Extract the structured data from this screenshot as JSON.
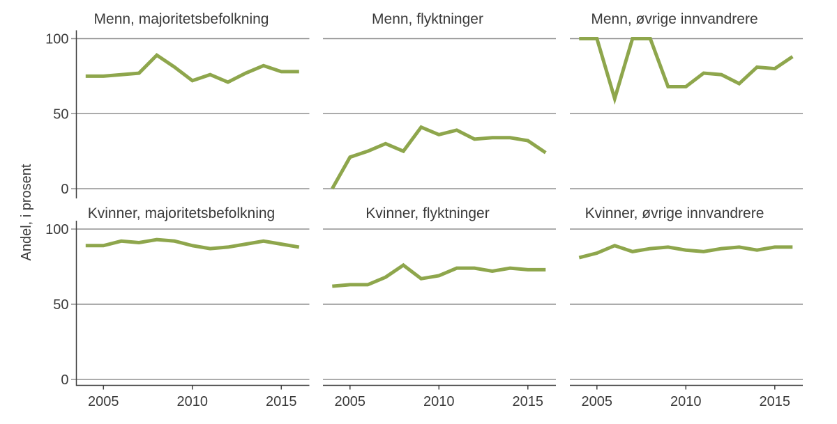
{
  "chart_data": {
    "type": "line",
    "layout": "2x3 small multiples, shared axes",
    "x": [
      2004,
      2005,
      2006,
      2007,
      2008,
      2009,
      2010,
      2011,
      2012,
      2013,
      2014,
      2015,
      2016
    ],
    "ylabel": "Andel, i prosent",
    "ylim": [
      0,
      100
    ],
    "yticks": [
      0,
      50,
      100
    ],
    "ytick_labels": [
      "0",
      "50",
      "100"
    ],
    "xticks": [
      2005,
      2010,
      2015
    ],
    "xtick_labels": [
      "2005",
      "2010",
      "2015"
    ],
    "grid": "horizontal gridlines at 0/50/100 only",
    "legend": "none",
    "panels": [
      {
        "title": "Menn, majoritetsbefolkning",
        "row": 0,
        "col": 0,
        "values": [
          75,
          75,
          76,
          77,
          89,
          81,
          72,
          76,
          71,
          77,
          82,
          78,
          78
        ]
      },
      {
        "title": "Menn, flyktninger",
        "row": 0,
        "col": 1,
        "values": [
          0,
          21,
          25,
          30,
          25,
          41,
          36,
          39,
          33,
          34,
          34,
          32,
          24
        ]
      },
      {
        "title": "Menn, øvrige innvandrere",
        "row": 0,
        "col": 2,
        "values": [
          100,
          100,
          60,
          100,
          100,
          68,
          68,
          77,
          76,
          70,
          81,
          80,
          88
        ]
      },
      {
        "title": "Kvinner, majoritetsbefolkning",
        "row": 1,
        "col": 0,
        "values": [
          89,
          89,
          92,
          91,
          93,
          92,
          89,
          87,
          88,
          90,
          92,
          90,
          88
        ]
      },
      {
        "title": "Kvinner, flyktninger",
        "row": 1,
        "col": 1,
        "values": [
          62,
          63,
          63,
          68,
          76,
          67,
          69,
          74,
          74,
          72,
          74,
          73,
          73
        ]
      },
      {
        "title": "Kvinner, øvrige innvandrere",
        "row": 1,
        "col": 2,
        "values": [
          81,
          84,
          89,
          85,
          87,
          88,
          86,
          85,
          87,
          88,
          86,
          88,
          88
        ]
      }
    ],
    "colors": {
      "line": "#8EA64C",
      "grid": "#909090",
      "axis": "#3F3F3F",
      "text": "#3A3A3A",
      "background": "#FFFFFF"
    }
  }
}
